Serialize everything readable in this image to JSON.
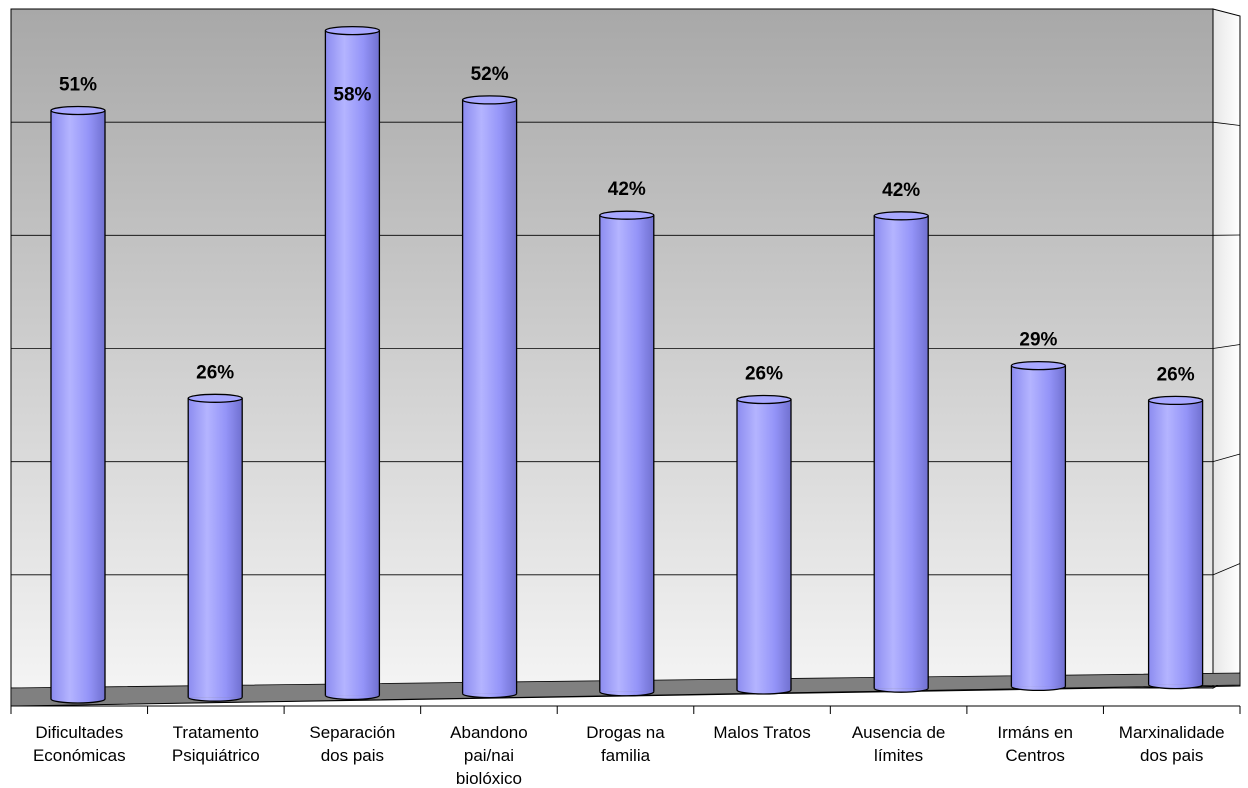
{
  "colors": {
    "bar_fill": "#9999ff",
    "bar_stroke": "#000000",
    "wall_fill": "#c0c0c0",
    "floor_fill": "#808080",
    "grid": "#000000"
  },
  "chart_data": {
    "type": "bar",
    "style": "3d-cylinder",
    "title": "",
    "xlabel": "",
    "ylabel": "",
    "ylim": [
      0,
      60
    ],
    "grid": true,
    "legend": "none",
    "categories": [
      [
        "Dificultades",
        "Económicas"
      ],
      [
        "Tratamento",
        "Psiquiátrico"
      ],
      [
        "Separación",
        "dos pais"
      ],
      [
        "Abandono",
        "pai/nai",
        "biolóxico"
      ],
      [
        "Drogas na",
        "familia"
      ],
      [
        "Malos Tratos"
      ],
      [
        "Ausencia de",
        "límites"
      ],
      [
        "Irmáns en",
        "Centros"
      ],
      [
        "Marxinalidade",
        "dos pais"
      ]
    ],
    "values": [
      51,
      26,
      58,
      52,
      42,
      26,
      42,
      29,
      26
    ],
    "data_labels": [
      "51%",
      "26%",
      "58%",
      "52%",
      "42%",
      "26%",
      "42%",
      "29%",
      "26%"
    ]
  }
}
